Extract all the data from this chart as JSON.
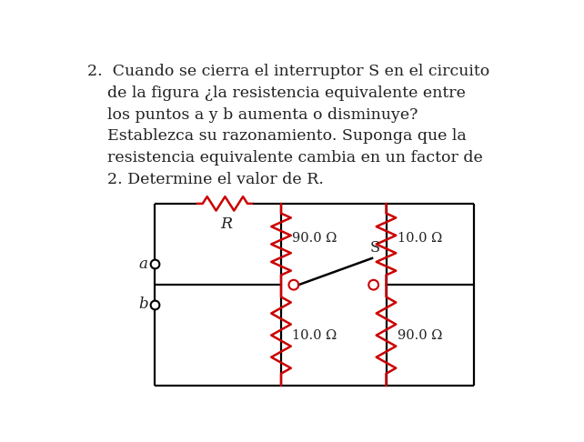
{
  "background_color": "#ffffff",
  "text_color": "#222222",
  "resistor_color": "#cc0000",
  "wire_color": "#000000",
  "label_R": "R",
  "label_90_1": "90.0 Ω",
  "label_10_1": "10.0 Ω",
  "label_10_2": "10.0 Ω",
  "label_90_2": "90.0 Ω",
  "label_S": "S",
  "label_a": "a",
  "label_b": "b",
  "text_lines": [
    "2.  Cuando se cierra el interruptor S en el circuito",
    "    de la figura ¿la resistencia equivalente entre",
    "    los puntos a y b aumenta o disminuye?",
    "    Establezca su razonamiento. Suponga que la",
    "    resistencia equivalente cambia en un factor de",
    "    2. Determine el valor de R."
  ],
  "font_size_text": 12.5,
  "font_size_circuit": 10.5,
  "font_size_label_ab": 12
}
